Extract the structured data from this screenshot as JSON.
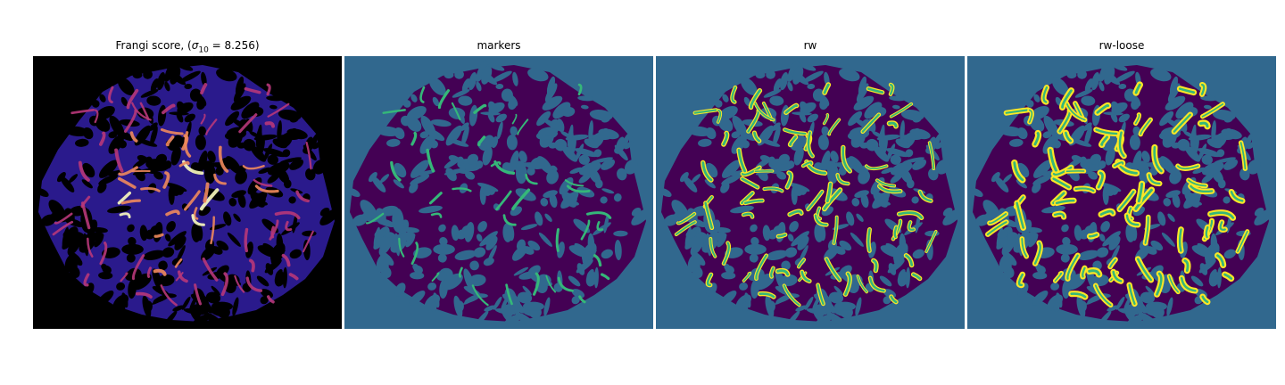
{
  "figure": {
    "panels": [
      {
        "title_prefix": "Frangi score, (",
        "title_sigma": "σ",
        "title_sub": "10",
        "title_suffix": " = 8.256)",
        "colormap": "magma",
        "background": "#000000"
      },
      {
        "title": "markers",
        "background": "#31688e"
      },
      {
        "title": "rw",
        "background": "#31688e"
      },
      {
        "title": "rw-loose",
        "background": "#31688e"
      }
    ],
    "colors": {
      "viridis_bg": "#31688e",
      "viridis_dark": "#440154",
      "viridis_green": "#35b779",
      "viridis_yellow": "#fde725",
      "magma_base": "#2a1a8c",
      "magma_mid": "#b73779",
      "magma_high": "#fcfdbf"
    }
  }
}
